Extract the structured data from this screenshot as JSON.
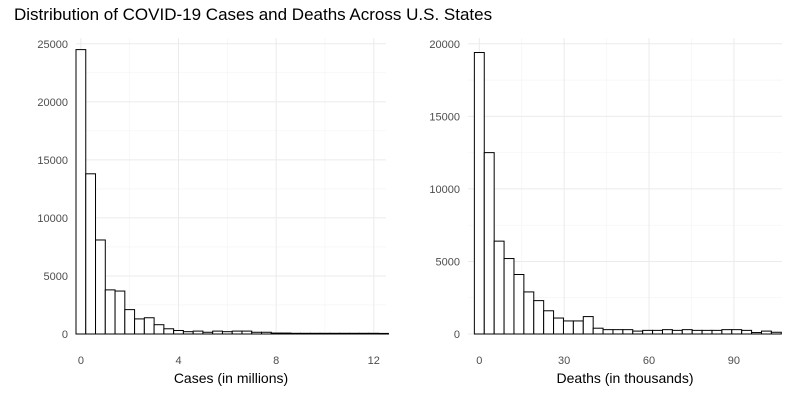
{
  "title": "Distribution of COVID-19 Cases and Deaths Across U.S. States",
  "chart_data": [
    {
      "type": "bar",
      "xlabel": "Cases (in millions)",
      "ylabel": "",
      "xlim": [
        -0.2,
        12.5
      ],
      "ylim": [
        0,
        25500
      ],
      "x_ticks": [
        0,
        4,
        8,
        12
      ],
      "y_ticks": [
        0,
        5000,
        10000,
        15000,
        20000,
        25000
      ],
      "bin_width": 0.4,
      "bin_start": -0.2,
      "values": [
        24500,
        13800,
        8100,
        3800,
        3700,
        2100,
        1300,
        1400,
        800,
        450,
        300,
        200,
        250,
        150,
        250,
        200,
        250,
        250,
        150,
        150,
        80,
        80,
        60,
        60,
        60,
        60,
        60,
        60,
        60,
        60,
        60,
        50
      ],
      "fill": "#ffffff",
      "stroke": "#000000",
      "grid": true
    },
    {
      "type": "bar",
      "xlabel": "Deaths (in thousands)",
      "ylabel": "",
      "xlim": [
        -4,
        107
      ],
      "ylim": [
        0,
        20400
      ],
      "x_ticks": [
        0,
        30,
        60,
        90
      ],
      "y_ticks": [
        0,
        5000,
        10000,
        15000,
        20000
      ],
      "bin_width": 3.5,
      "bin_start": -1.75,
      "values": [
        19400,
        12500,
        6400,
        5200,
        4100,
        2900,
        2300,
        1600,
        1100,
        900,
        900,
        1200,
        400,
        300,
        300,
        300,
        200,
        250,
        250,
        300,
        250,
        300,
        250,
        250,
        250,
        300,
        300,
        250,
        100,
        200,
        120
      ],
      "fill": "#ffffff",
      "stroke": "#000000",
      "grid": true
    }
  ]
}
